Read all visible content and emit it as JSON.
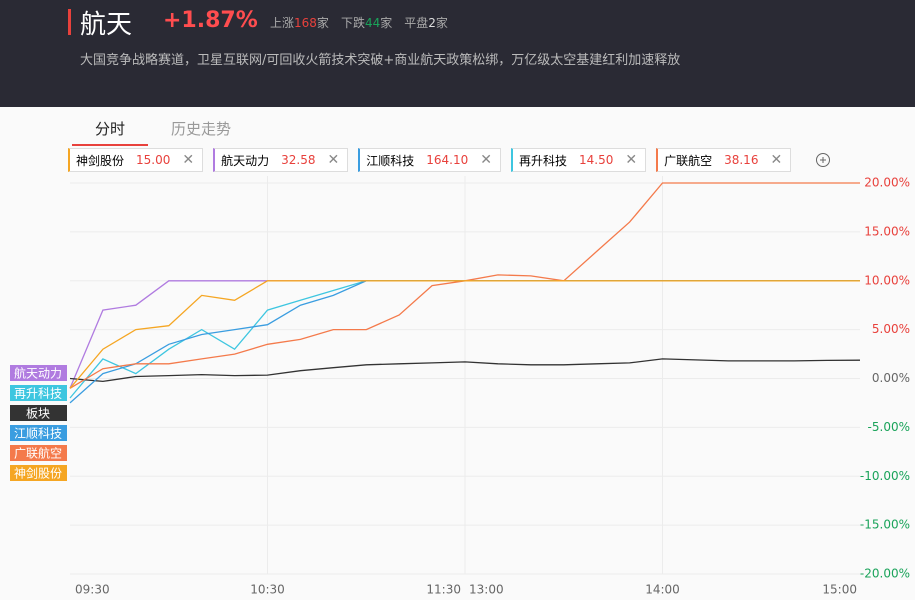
{
  "header": {
    "title": "航天",
    "change": "+1.87%",
    "stats": [
      {
        "label": "上涨",
        "count": "168",
        "unit": "家",
        "color": "#e8413c"
      },
      {
        "label": "下跌",
        "count": "44",
        "unit": "家",
        "color": "#1aa35a"
      },
      {
        "label": "平盘",
        "count": "2",
        "unit": "家",
        "color": "#ddd"
      }
    ],
    "description": "大国竞争战略赛道，卫星互联网/可回收火箭技术突破+商业航天政策松绑，万亿级太空基建红利加速释放"
  },
  "tabs": [
    "分时",
    "历史走势"
  ],
  "chips": [
    {
      "name": "神剑股份",
      "price": "15.00",
      "color": "#f5a623"
    },
    {
      "name": "航天动力",
      "price": "32.58",
      "color": "#b07be0"
    },
    {
      "name": "江顺科技",
      "price": "164.10",
      "color": "#3a9de0"
    },
    {
      "name": "再升科技",
      "price": "14.50",
      "color": "#3ec6e0"
    },
    {
      "name": "广联航空",
      "price": "38.16",
      "color": "#f47a4b"
    }
  ],
  "chart_data": {
    "type": "line",
    "x": [
      "09:30",
      "09:40",
      "09:50",
      "10:00",
      "10:10",
      "10:20",
      "10:30",
      "10:40",
      "10:50",
      "11:00",
      "11:10",
      "11:20",
      "11:30",
      "13:10",
      "13:20",
      "13:30",
      "13:40",
      "13:50",
      "14:00",
      "14:10",
      "14:20",
      "14:30",
      "14:40",
      "14:50",
      "15:00"
    ],
    "series": [
      {
        "name": "航天动力",
        "color": "#b07be0",
        "values": [
          -1,
          7,
          7.5,
          10,
          10,
          10,
          10,
          10,
          10,
          10,
          10,
          10,
          10,
          10,
          10,
          10,
          10,
          10,
          10,
          10,
          10,
          10,
          10,
          10,
          10
        ]
      },
      {
        "name": "再升科技",
        "color": "#3ec6e0",
        "values": [
          -2,
          2,
          0.5,
          3,
          5,
          3,
          7,
          8,
          9,
          10,
          10,
          10,
          10,
          10,
          10,
          10,
          10,
          10,
          10,
          10,
          10,
          10,
          10,
          10,
          10
        ]
      },
      {
        "name": "板块",
        "color": "#333333",
        "values": [
          0,
          -0.3,
          0.2,
          0.3,
          0.4,
          0.3,
          0.35,
          0.8,
          1.1,
          1.4,
          1.5,
          1.6,
          1.7,
          1.5,
          1.4,
          1.4,
          1.5,
          1.6,
          2,
          1.9,
          1.8,
          1.8,
          1.8,
          1.85,
          1.87
        ]
      },
      {
        "name": "江顺科技",
        "color": "#3a9de0",
        "values": [
          -2.5,
          0.5,
          1.5,
          3.5,
          4.5,
          5,
          5.5,
          7.5,
          8.5,
          10,
          10,
          10,
          10,
          10,
          10,
          10,
          10,
          10,
          10,
          10,
          10,
          10,
          10,
          10,
          10
        ]
      },
      {
        "name": "广联航空",
        "color": "#f47a4b",
        "values": [
          -1,
          1,
          1.5,
          1.5,
          2,
          2.5,
          3.5,
          4,
          5,
          5,
          6.5,
          9.5,
          10,
          10.6,
          10.5,
          10,
          13,
          16,
          20,
          20,
          20,
          20,
          20,
          20,
          20
        ]
      },
      {
        "name": "神剑股份",
        "color": "#f5a623",
        "values": [
          -1,
          3,
          5,
          5.4,
          8.5,
          8,
          10,
          10,
          10,
          10,
          10,
          10,
          10,
          10,
          10,
          10,
          10,
          10,
          10,
          10,
          10,
          10,
          10,
          10,
          10
        ]
      }
    ],
    "ylim": [
      -20,
      20
    ],
    "yticks": [
      {
        "value": -20,
        "label": "-20.00%"
      },
      {
        "value": -15,
        "label": "-15.00%"
      },
      {
        "value": -10,
        "label": "-10.00%"
      },
      {
        "value": -5,
        "label": "-5.00%"
      },
      {
        "value": 0,
        "label": "0.00%"
      },
      {
        "value": 5,
        "label": "5.00%"
      },
      {
        "value": 10,
        "label": "10.00%"
      },
      {
        "value": 15,
        "label": "15.00%"
      },
      {
        "value": 20,
        "label": "20.00%"
      }
    ],
    "xticks": [
      "09:30",
      "10:30",
      "11:30",
      "13:00",
      "14:00",
      "15:00"
    ],
    "grid": true
  }
}
